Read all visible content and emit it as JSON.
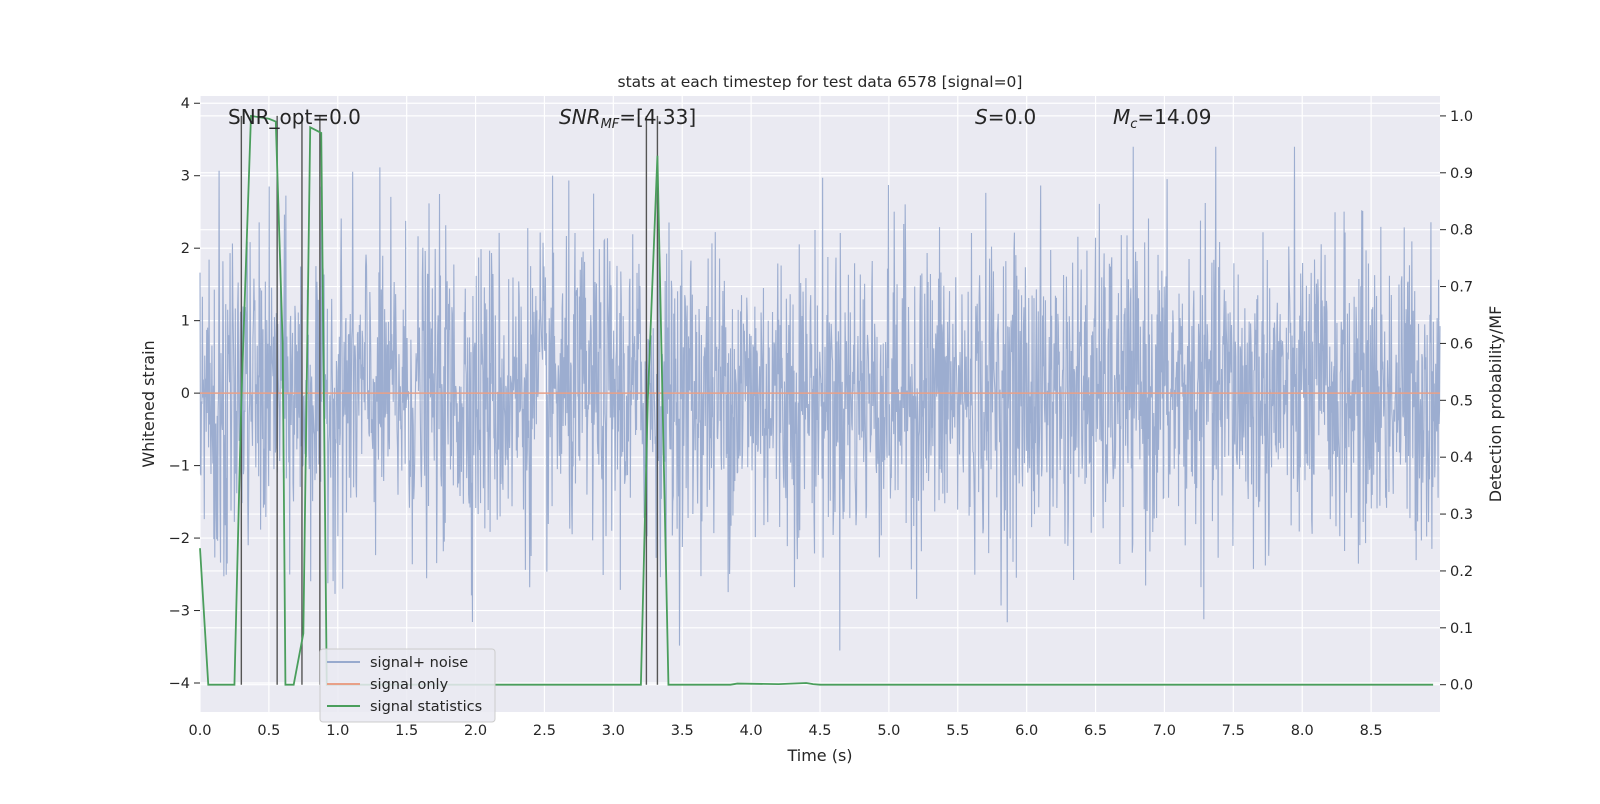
{
  "chart_data": {
    "type": "line",
    "title": "stats at each timestep for test data 6578 [signal=0]",
    "xlabel": "Time (s)",
    "ylabel": "Whitened strain",
    "y2label": "Detection probability/MF",
    "xlim": [
      0.0,
      9.0
    ],
    "ylim": [
      -4.4,
      4.1
    ],
    "y2lim": [
      -0.048,
      1.035
    ],
    "x_ticks": [
      "0.0",
      "0.5",
      "1.0",
      "1.5",
      "2.0",
      "2.5",
      "3.0",
      "3.5",
      "4.0",
      "4.5",
      "5.0",
      "5.5",
      "6.0",
      "6.5",
      "7.0",
      "7.5",
      "8.0",
      "8.5"
    ],
    "y_ticks": [
      "4",
      "3",
      "2",
      "1",
      "0",
      "−1",
      "−2",
      "−3",
      "−4"
    ],
    "y2_ticks": [
      "1.0",
      "0.9",
      "0.8",
      "0.7",
      "0.6",
      "0.5",
      "0.4",
      "0.3",
      "0.2",
      "0.1",
      "0.0"
    ],
    "grid": true,
    "legend_position": "lower-left",
    "annotations": {
      "snr_opt": "SNR_opt=0.0",
      "snr_mf_main": "SNR",
      "snr_mf_sub": "MF",
      "snr_mf_value": "=[4.33]",
      "s_symbol": "S",
      "s_value": "=0.0",
      "mc_symbol": "M",
      "mc_sub": "c",
      "mc_value": "=14.09"
    },
    "series": [
      {
        "name": "signal+ noise",
        "color": "#98aace",
        "note": "whitened strain time series, amplitude roughly between -3.7 and 3.4",
        "peak_max": 3.4,
        "peak_min": -3.7
      },
      {
        "name": "signal only",
        "color": "#e8a088",
        "x": [
          0.0,
          9.0
        ],
        "y": [
          0.0,
          0.0
        ]
      },
      {
        "name": "signal statistics",
        "color": "#4a9e5c",
        "axis": "right",
        "x": [
          0.0,
          0.06,
          0.25,
          0.3,
          0.37,
          0.5,
          0.55,
          0.6,
          0.62,
          0.68,
          0.75,
          0.8,
          0.88,
          0.92,
          3.2,
          3.25,
          3.32,
          3.4,
          3.85,
          3.9,
          4.2,
          4.4,
          4.45,
          4.5,
          8.95
        ],
        "y": [
          0.24,
          0.0,
          0.0,
          0.5,
          1.0,
          0.995,
          0.99,
          0.6,
          0.0,
          0.0,
          0.09,
          0.98,
          0.97,
          0.0,
          0.0,
          0.5,
          0.93,
          0.0,
          0.0,
          0.002,
          0.001,
          0.003,
          0.001,
          0.0,
          0.0
        ]
      }
    ],
    "markers": {
      "color": "#555555",
      "x": [
        0.3,
        0.56,
        0.74,
        0.87,
        3.24,
        3.32
      ]
    }
  },
  "legend": {
    "items": [
      {
        "label": "signal+ noise",
        "color": "#98aace"
      },
      {
        "label": "signal only",
        "color": "#e8a088"
      },
      {
        "label": "signal statistics",
        "color": "#4a9e5c"
      }
    ]
  }
}
